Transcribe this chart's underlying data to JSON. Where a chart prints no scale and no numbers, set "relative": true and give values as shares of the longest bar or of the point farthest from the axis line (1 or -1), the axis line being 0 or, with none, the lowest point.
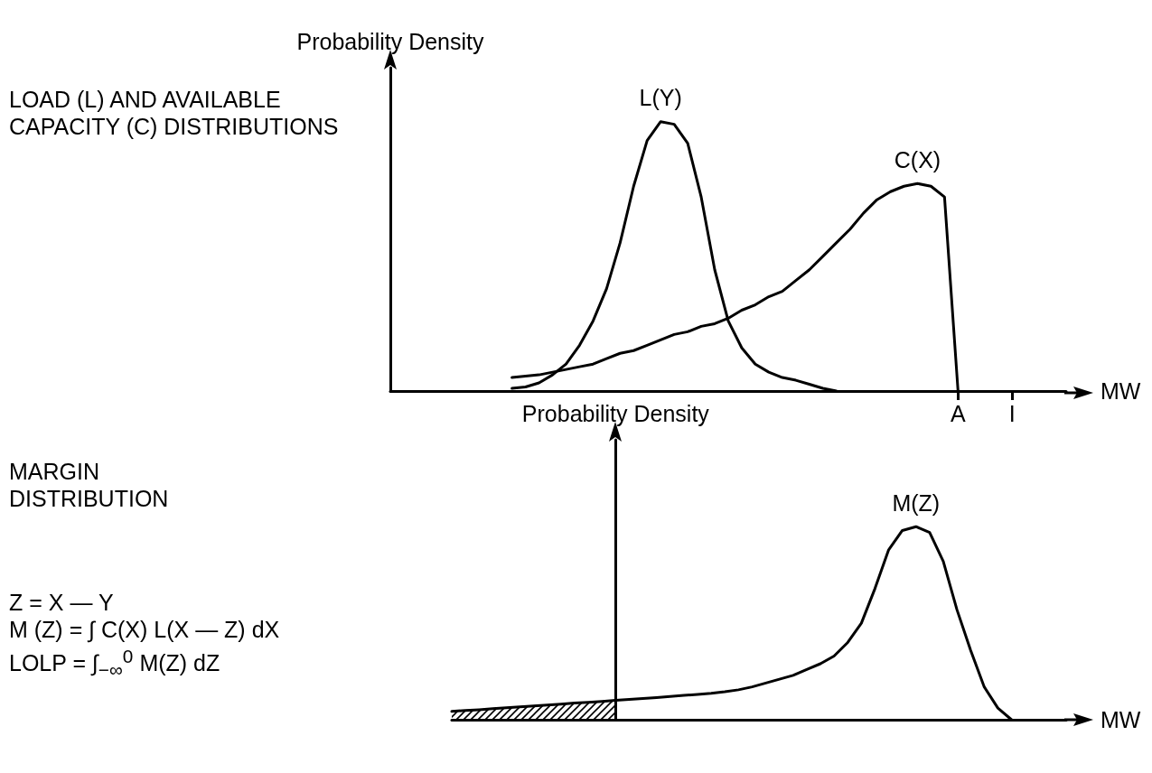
{
  "chart_data": [
    {
      "type": "line",
      "relative": true,
      "xlabel": "MW",
      "ylabel": "Probability Density",
      "annotations": [
        "LOAD (L) AND AVAILABLE CAPACITY (C) DISTRIBUTIONS"
      ],
      "categories": [
        null,
        null,
        null,
        null,
        null,
        null,
        null,
        null,
        null,
        null,
        null,
        null,
        null,
        null,
        null,
        null,
        null,
        null,
        null,
        null,
        null,
        null,
        null,
        null,
        null,
        null,
        null,
        null,
        null,
        null,
        null,
        null,
        null,
        null,
        null,
        null,
        null,
        null,
        null,
        null,
        null,
        null,
        "A",
        null,
        null,
        null,
        "I",
        null,
        null,
        null,
        null
      ],
      "tick_labels": "x",
      "marker": "none",
      "line_style": "solid",
      "series": [
        {
          "name": "L(Y)",
          "color": "#000000",
          "values": [
            null,
            null,
            null,
            null,
            null,
            null,
            null,
            null,
            null,
            0.01,
            0.015,
            0.03,
            0.06,
            0.1,
            0.17,
            0.26,
            0.38,
            0.55,
            0.76,
            0.93,
            1.0,
            0.99,
            0.92,
            0.72,
            0.45,
            0.26,
            0.16,
            0.1,
            0.07,
            0.05,
            0.04,
            0.025,
            0.01,
            0,
            null,
            null,
            null,
            null,
            null,
            null,
            null,
            null,
            null,
            null,
            null,
            null,
            null,
            null,
            null,
            null,
            null
          ]
        },
        {
          "name": "C(X)",
          "color": "#000000",
          "values": [
            null,
            null,
            null,
            null,
            null,
            null,
            null,
            null,
            null,
            0.05,
            0.055,
            0.06,
            0.07,
            0.08,
            0.09,
            0.1,
            0.12,
            0.14,
            0.15,
            0.17,
            0.19,
            0.21,
            0.22,
            0.24,
            0.25,
            0.27,
            0.3,
            0.32,
            0.35,
            0.37,
            0.41,
            0.45,
            0.5,
            0.55,
            0.6,
            0.66,
            0.71,
            0.74,
            0.76,
            0.77,
            0.76,
            0.72,
            0,
            null,
            null,
            null,
            null,
            null,
            null,
            null,
            null
          ]
        }
      ]
    },
    {
      "type": "line",
      "relative": true,
      "xlabel": "MW",
      "ylabel": "Probability Density",
      "annotations": [
        "MARGIN DISTRIBUTION",
        "Z = X — Y",
        "M (Z) = ∫ C(X) L(X — Z) dX",
        "LOLP = ∫$_{−∞}$$^{0}$ M(Z) dZ"
      ],
      "categories": [
        null,
        null,
        null,
        null,
        null,
        null,
        null,
        null,
        null,
        null,
        null,
        null,
        null,
        null,
        null,
        null,
        null,
        null,
        null,
        null,
        null,
        null,
        null,
        null,
        null,
        null,
        null,
        null,
        null,
        null,
        null,
        null,
        null,
        null,
        null,
        null,
        null,
        null,
        null,
        null,
        null,
        null,
        null,
        null,
        null,
        null
      ],
      "tick_labels": false,
      "marker": "none",
      "line_style": "solid",
      "series": [
        {
          "type": "area",
          "color": "#000000",
          "values": [
            0.043,
            0.048,
            0.052,
            0.057,
            0.062,
            0.067,
            0.071,
            0.076,
            0.081,
            0.086,
            0.09,
            0.095,
            0.1,
            null,
            null,
            null,
            null,
            null,
            null,
            null,
            null,
            null,
            null,
            null,
            null,
            null,
            null,
            null,
            null,
            null,
            null,
            null,
            null,
            null,
            null,
            null,
            null,
            null,
            null,
            null,
            null,
            null,
            null,
            null,
            null,
            null
          ]
        },
        {
          "name": "M(Z)",
          "color": "#000000",
          "values": [
            0.043,
            0.048,
            0.052,
            0.057,
            0.062,
            0.067,
            0.071,
            0.076,
            0.081,
            0.086,
            0.09,
            0.095,
            0.1,
            0.105,
            0.11,
            0.115,
            0.12,
            0.126,
            0.131,
            0.137,
            0.145,
            0.155,
            0.17,
            0.19,
            0.21,
            0.23,
            0.26,
            0.29,
            0.33,
            0.4,
            0.5,
            0.68,
            0.88,
            0.98,
            1.0,
            0.97,
            0.82,
            0.57,
            0.36,
            0.17,
            0.06,
            0,
            null,
            null,
            null,
            null
          ]
        }
      ]
    }
  ]
}
